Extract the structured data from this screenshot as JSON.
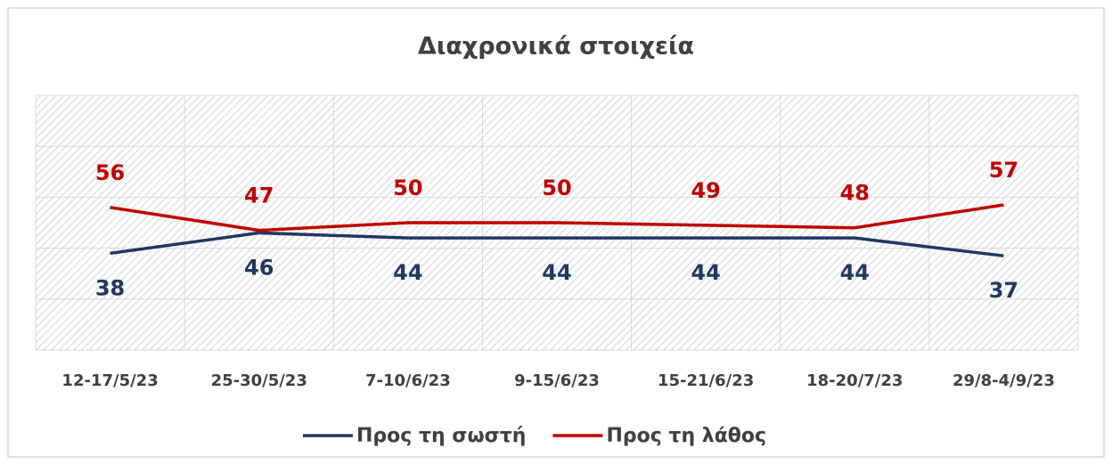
{
  "chart_data": {
    "type": "line",
    "title": "Διαχρονικά στοιχεία",
    "categories": [
      "12-17/5/23",
      "25-30/5/23",
      "7-10/6/23",
      "9-15/6/23",
      "15-21/6/23",
      "18-20/7/23",
      "29/8-4/9/23"
    ],
    "series": [
      {
        "name": "Προς τη σωστή",
        "color": "#1f3864",
        "values": [
          38,
          46,
          44,
          44,
          44,
          44,
          37
        ]
      },
      {
        "name": "Προς τη λάθος",
        "color": "#c00000",
        "values": [
          56,
          47,
          50,
          50,
          49,
          48,
          57
        ]
      }
    ],
    "ylim": [
      0,
      100
    ],
    "yticks": [
      0,
      20,
      40,
      60,
      80,
      100
    ],
    "grid": true
  }
}
